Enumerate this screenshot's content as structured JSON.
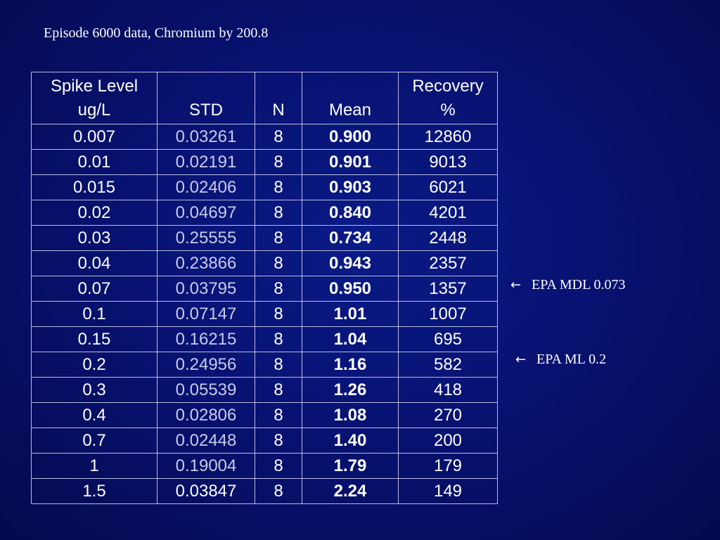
{
  "title": "Episode 6000 data, Chromium by 200.8",
  "table": {
    "headers": [
      [
        "Spike Level",
        "ug/L"
      ],
      [
        "",
        "STD"
      ],
      [
        "",
        "N"
      ],
      [
        "",
        "Mean"
      ],
      [
        "Recovery",
        "%"
      ]
    ],
    "rows": [
      {
        "spike": "0.007",
        "std": "0.03261",
        "n": "8",
        "mean": "0.900",
        "recovery": "12860"
      },
      {
        "spike": "0.01",
        "std": "0.02191",
        "n": "8",
        "mean": "0.901",
        "recovery": "9013"
      },
      {
        "spike": "0.015",
        "std": "0.02406",
        "n": "8",
        "mean": "0.903",
        "recovery": "6021"
      },
      {
        "spike": "0.02",
        "std": "0.04697",
        "n": "8",
        "mean": "0.840",
        "recovery": "4201"
      },
      {
        "spike": "0.03",
        "std": "0.25555",
        "n": "8",
        "mean": "0.734",
        "recovery": "2448"
      },
      {
        "spike": "0.04",
        "std": "0.23866",
        "n": "8",
        "mean": "0.943",
        "recovery": "2357"
      },
      {
        "spike": "0.07",
        "std": "0.03795",
        "n": "8",
        "mean": "0.950",
        "recovery": "1357"
      },
      {
        "spike": "0.1",
        "std": "0.07147",
        "n": "8",
        "mean": "1.01",
        "recovery": "1007"
      },
      {
        "spike": "0.15",
        "std": "0.16215",
        "n": "8",
        "mean": "1.04",
        "recovery": "695"
      },
      {
        "spike": "0.2",
        "std": "0.24956",
        "n": "8",
        "mean": "1.16",
        "recovery": "582"
      },
      {
        "spike": "0.3",
        "std": "0.05539",
        "n": "8",
        "mean": "1.26",
        "recovery": "418"
      },
      {
        "spike": "0.4",
        "std": "0.02806",
        "n": "8",
        "mean": "1.08",
        "recovery": "270"
      },
      {
        "spike": "0.7",
        "std": "0.02448",
        "n": "8",
        "mean": "1.40",
        "recovery": "200"
      },
      {
        "spike": "1",
        "std": "0.19004",
        "n": "8",
        "mean": "1.79",
        "recovery": "179"
      },
      {
        "spike": "1.5",
        "std": "0.03847",
        "n": "8",
        "mean": "2.24",
        "recovery": "149"
      }
    ]
  },
  "annotations": [
    {
      "text": "EPA MDL 0.073",
      "arrow_icon": "left-arrow-icon"
    },
    {
      "text": "EPA ML 0.2",
      "arrow_icon": "left-arrow-icon"
    }
  ],
  "colors": {
    "background": "#071272",
    "text": "#ffffff",
    "std_text": "#c9cbe8",
    "grid": "#b8bde0"
  }
}
